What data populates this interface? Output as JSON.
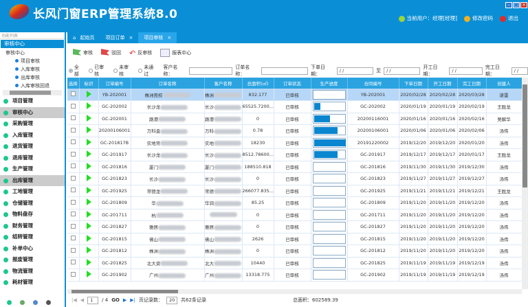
{
  "app": {
    "title": "长风门窗ERP管理系统8.0",
    "current_user": "当前用户：经理[经理]",
    "change_password": "修改密码",
    "logout": "退出"
  },
  "sidebar": {
    "search_placeholder": "功能列表",
    "panel_title": "审核中心",
    "tree": {
      "root": "审核中心",
      "items": [
        "项目审核",
        "入库审核",
        "出库审核",
        "入库审核回退"
      ]
    },
    "menu": [
      "项目管理",
      "审核中心",
      "采购管理",
      "入库管理",
      "退货管理",
      "退库管理",
      "生产管理",
      "出库管理",
      "工地管理",
      "仓储管理",
      "物料盘存",
      "财务管理",
      "结转管理",
      "补单中心",
      "报废管理",
      "物流管理",
      "耗材管理"
    ],
    "active_menu": [
      "审核中心",
      "出库管理"
    ]
  },
  "tabs": [
    {
      "label": "起始页"
    },
    {
      "label": "项目订单"
    },
    {
      "label": "项目审核",
      "active": true
    }
  ],
  "toolbar": {
    "approve": "审核",
    "reject": "驳回",
    "unapprove": "反审核",
    "report": "报表中心"
  },
  "filters": {
    "status_options": [
      "全部",
      "已审核",
      "未审核",
      "未通过"
    ],
    "selected": "全部",
    "customer_label": "客户名称：",
    "order_label": "订单名称：",
    "order_date_label": "下单日期：",
    "to_label": "至",
    "start_date_label": "开工日期：",
    "finish_date_label": "完工日期：",
    "date_placeholder": " /  /"
  },
  "table": {
    "columns": [
      "选择",
      "标识",
      "订单编号",
      "订单名称",
      "客户名称",
      "总面积(㎡)",
      "订单状态",
      "生产进度",
      "合同编号",
      "下单日期",
      "开工日期",
      "完工日期",
      "创建人"
    ],
    "rows": [
      {
        "no": "YB-202001",
        "name": "株洲莞校",
        "cust": "株洲",
        "area": "832.177",
        "status": "已审核",
        "progress": 0,
        "contract": "YB-202001",
        "d1": "2020/02/28",
        "d2": "2020/02/28",
        "d3": "2020/03/28",
        "creator": "谌雷"
      },
      {
        "no": "GC-202002",
        "name": "长沙龙",
        "cust": "长沙",
        "area": "65525.7200...",
        "status": "已审核",
        "progress": 20,
        "contract": "GC-202002",
        "d1": "2020/01/19",
        "d2": "2020/01/19",
        "d3": "2020/02/19",
        "creator": "王胜龙"
      },
      {
        "no": "GC-202001",
        "name": "路港",
        "cust": "路港",
        "area": "0",
        "status": "已审核",
        "progress": 50,
        "contract": "20200116001",
        "d1": "2020/01/16",
        "d2": "2020/01/16",
        "d3": "2020/02/16",
        "creator": "吴解华"
      },
      {
        "no": "20200106001",
        "name": "万科金",
        "cust": "万科",
        "area": "0.78",
        "status": "已审核",
        "progress": 75,
        "contract": "20200106001",
        "d1": "2020/01/06",
        "d2": "2020/01/06",
        "d3": "2020/02/06",
        "creator": "汤伟"
      },
      {
        "no": "GC-201817B",
        "name": "实地常",
        "cust": "实地",
        "area": "18230",
        "status": "已审核",
        "progress": 100,
        "contract": "20191220002",
        "d1": "2019/12/20",
        "d2": "2019/12/20",
        "d3": "2020/01/20",
        "creator": "汤伟"
      },
      {
        "no": "GC-201917",
        "name": "长沙龙",
        "cust": "长沙",
        "area": "8512.78600...",
        "status": "已审核",
        "progress": 75,
        "contract": "GC-201917",
        "d1": "2019/12/17",
        "d2": "2019/12/17",
        "d3": "2020/01/17",
        "creator": "王胜龙"
      },
      {
        "no": "GC-201816",
        "name": "厦门",
        "cust": "厦门",
        "area": "188510.818",
        "status": "已审核",
        "progress": 0,
        "contract": "GC-201816",
        "d1": "2019/11/30",
        "d2": "2019/11/30",
        "d3": "2019/12/30",
        "creator": "汤伟"
      },
      {
        "no": "GC-201823",
        "name": "长沙",
        "cust": "长沙",
        "area": "0",
        "status": "已审核",
        "progress": 0,
        "contract": "GC-201823",
        "d1": "2019/11/27",
        "d2": "2019/11/27",
        "d3": "2019/12/27",
        "creator": "汤伟"
      },
      {
        "no": "GC-201925",
        "name": "常德龙",
        "cust": "常德",
        "area": "266077.835...",
        "status": "已审核",
        "progress": 0,
        "contract": "GC-201925",
        "d1": "2019/11/21",
        "d2": "2019/11/21",
        "d3": "2019/12/21",
        "creator": "王胜龙"
      },
      {
        "no": "GC-201809",
        "name": "华",
        "cust": "华润",
        "area": "85.25",
        "status": "已审核",
        "progress": 0,
        "contract": "GC-201809",
        "d1": "2019/11/20",
        "d2": "2019/11/20",
        "d3": "2019/12/20",
        "creator": "汤伟"
      },
      {
        "no": "GC-201711",
        "name": "杭",
        "cust": "",
        "area": "0",
        "status": "已审核",
        "progress": 0,
        "contract": "GC-201711",
        "d1": "2019/11/20",
        "d2": "2019/11/20",
        "d3": "2019/12/20",
        "creator": "汤伟"
      },
      {
        "no": "GC-201827",
        "name": "雅居",
        "cust": "雅居",
        "area": "0",
        "status": "已审核",
        "progress": 0,
        "contract": "GC-201827",
        "d1": "2019/11/20",
        "d2": "2019/11/20",
        "d3": "2019/12/20",
        "creator": "汤伟"
      },
      {
        "no": "GC-201815",
        "name": "佛山",
        "cust": "佛山",
        "area": "2626",
        "status": "已审核",
        "progress": 0,
        "contract": "GC-201815",
        "d1": "2019/11/20",
        "d2": "2019/11/20",
        "d3": "2019/12/20",
        "creator": "汤伟"
      },
      {
        "no": "GC-201812",
        "name": "株洲",
        "cust": "株洲",
        "area": "0",
        "status": "已审核",
        "progress": 0,
        "contract": "GC-201812",
        "d1": "2019/11/20",
        "d2": "2019/11/20",
        "d3": "2019/12/20",
        "creator": "汤伟"
      },
      {
        "no": "GC-201825",
        "name": "北大资",
        "cust": "北大",
        "area": "10440",
        "status": "已审核",
        "progress": 0,
        "contract": "GC-201825",
        "d1": "2019/11/19",
        "d2": "2019/11/19",
        "d3": "2019/12/19",
        "creator": "汤伟"
      },
      {
        "no": "GC-201902",
        "name": "广州",
        "cust": "广州",
        "area": "13318.775",
        "status": "已审核",
        "progress": 0,
        "contract": "GC-201902",
        "d1": "2019/11/19",
        "d2": "2019/11/19",
        "d3": "2019/12/19",
        "creator": "汤伟"
      }
    ]
  },
  "pager": {
    "page": "1",
    "total_pages": "/ 4",
    "go": "GO",
    "page_size_label": "页记录数：",
    "page_size": "20",
    "total_records": "共62条记录",
    "total_area": "总面积：602589.39"
  },
  "colors": {
    "header": "#0a8fd6",
    "table_header": "#2ba3e0",
    "progress": "#0a86d0",
    "marker": "#22dd22"
  }
}
